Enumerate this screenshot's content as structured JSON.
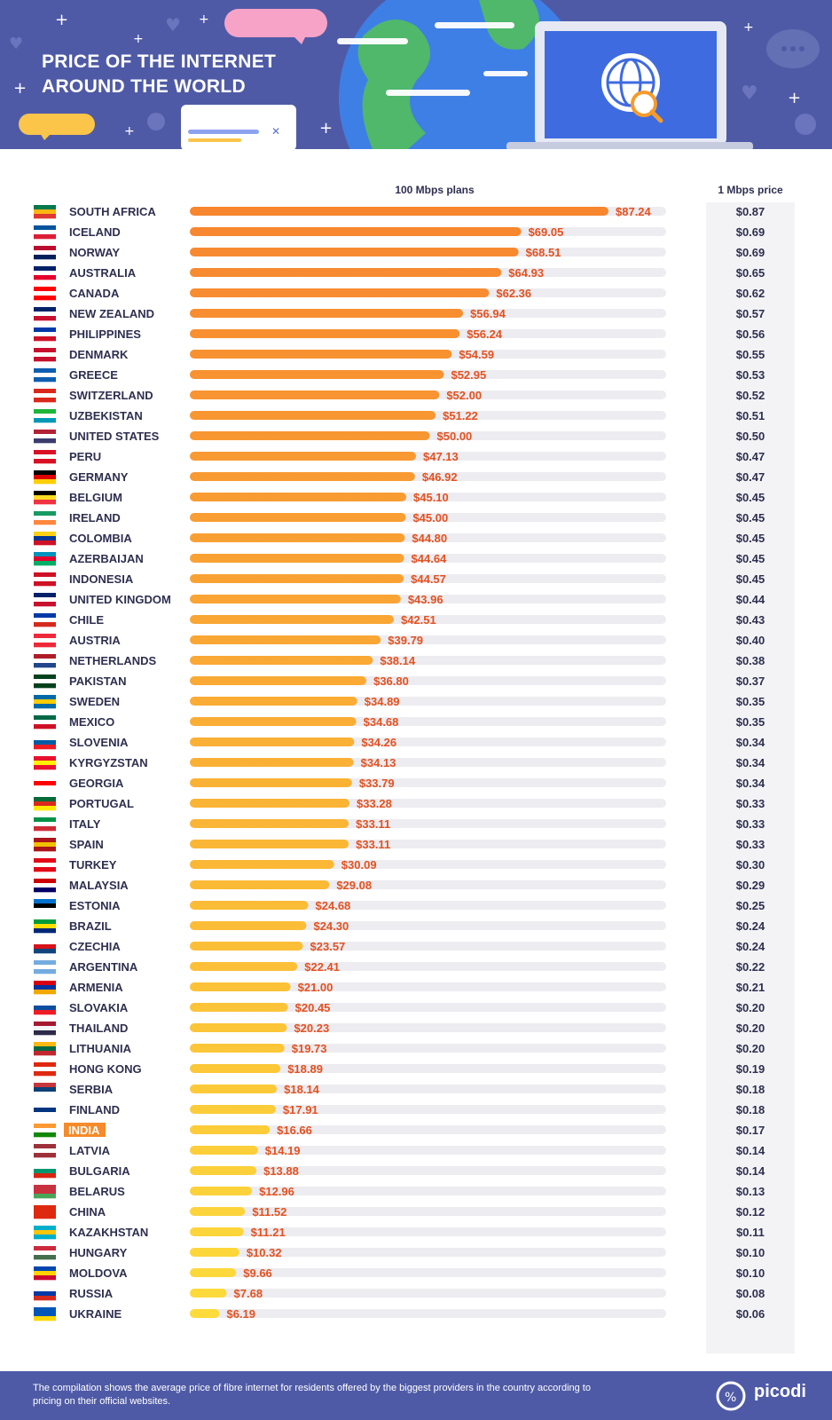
{
  "header": {
    "title_line1": "PRICE OF THE INTERNET",
    "title_line2": "AROUND THE WORLD"
  },
  "colors": {
    "bg_header": "#4f5aa6",
    "bar_track": "#ececf1",
    "bar_start": "#f7862f",
    "bar_end": "#fddb3b",
    "value_text": "#e5511e",
    "label_text": "#2e2f4f",
    "highlight": "#f58b2a"
  },
  "chart_data": {
    "type": "bar",
    "orientation": "horizontal",
    "title": "PRICE OF THE INTERNET AROUND THE WORLD",
    "column_plans_label": "100 Mbps plans",
    "column_mbps_label": "1 Mbps price",
    "xlim": [
      0,
      100
    ],
    "highlight": "INDIA",
    "categories": [
      "SOUTH AFRICA",
      "ICELAND",
      "NORWAY",
      "AUSTRALIA",
      "CANADA",
      "NEW ZEALAND",
      "PHILIPPINES",
      "DENMARK",
      "GREECE",
      "SWITZERLAND",
      "UZBEKISTAN",
      "UNITED STATES",
      "PERU",
      "GERMANY",
      "BELGIUM",
      "IRELAND",
      "COLOMBIA",
      "AZERBAIJAN",
      "INDONESIA",
      "UNITED KINGDOM",
      "CHILE",
      "AUSTRIA",
      "NETHERLANDS",
      "PAKISTAN",
      "SWEDEN",
      "MEXICO",
      "SLOVENIA",
      "KYRGYZSTAN",
      "GEORGIA",
      "PORTUGAL",
      "ITALY",
      "SPAIN",
      "TURKEY",
      "MALAYSIA",
      "ESTONIA",
      "BRAZIL",
      "CZECHIA",
      "ARGENTINA",
      "ARMENIA",
      "SLOVAKIA",
      "THAILAND",
      "LITHUANIA",
      "HONG KONG",
      "SERBIA",
      "FINLAND",
      "INDIA",
      "LATVIA",
      "BULGARIA",
      "BELARUS",
      "CHINA",
      "KAZAKHSTAN",
      "HUNGARY",
      "MOLDOVA",
      "RUSSIA",
      "UKRAINE"
    ],
    "values": [
      87.24,
      69.05,
      68.51,
      64.93,
      62.36,
      56.94,
      56.24,
      54.59,
      52.95,
      52.0,
      51.22,
      50.0,
      47.13,
      46.92,
      45.1,
      45.0,
      44.8,
      44.64,
      44.57,
      43.96,
      42.51,
      39.79,
      38.14,
      36.8,
      34.89,
      34.68,
      34.26,
      34.13,
      33.79,
      33.28,
      33.11,
      33.11,
      30.09,
      29.08,
      24.68,
      24.3,
      23.57,
      22.41,
      21.0,
      20.45,
      20.23,
      19.73,
      18.89,
      18.14,
      17.91,
      16.66,
      14.19,
      13.88,
      12.96,
      11.52,
      11.21,
      10.32,
      9.66,
      7.68,
      6.19
    ],
    "value_labels": [
      "$87.24",
      "$69.05",
      "$68.51",
      "$64.93",
      "$62.36",
      "$56.94",
      "$56.24",
      "$54.59",
      "$52.95",
      "$52.00",
      "$51.22",
      "$50.00",
      "$47.13",
      "$46.92",
      "$45.10",
      "$45.00",
      "$44.80",
      "$44.64",
      "$44.57",
      "$43.96",
      "$42.51",
      "$39.79",
      "$38.14",
      "$36.80",
      "$34.89",
      "$34.68",
      "$34.26",
      "$34.13",
      "$33.79",
      "$33.28",
      "$33.11",
      "$33.11",
      "$30.09",
      "$29.08",
      "$24.68",
      "$24.30",
      "$23.57",
      "$22.41",
      "$21.00",
      "$20.45",
      "$20.23",
      "$19.73",
      "$18.89",
      "$18.14",
      "$17.91",
      "$16.66",
      "$14.19",
      "$13.88",
      "$12.96",
      "$11.52",
      "$11.21",
      "$10.32",
      "$9.66",
      "$7.68",
      "$6.19"
    ],
    "per_mbps": [
      "$0.87",
      "$0.69",
      "$0.69",
      "$0.65",
      "$0.62",
      "$0.57",
      "$0.56",
      "$0.55",
      "$0.53",
      "$0.52",
      "$0.51",
      "$0.50",
      "$0.47",
      "$0.47",
      "$0.45",
      "$0.45",
      "$0.45",
      "$0.45",
      "$0.45",
      "$0.44",
      "$0.43",
      "$0.40",
      "$0.38",
      "$0.37",
      "$0.35",
      "$0.35",
      "$0.34",
      "$0.34",
      "$0.34",
      "$0.33",
      "$0.33",
      "$0.33",
      "$0.30",
      "$0.29",
      "$0.25",
      "$0.24",
      "$0.24",
      "$0.22",
      "$0.21",
      "$0.20",
      "$0.20",
      "$0.20",
      "$0.19",
      "$0.18",
      "$0.18",
      "$0.17",
      "$0.14",
      "$0.14",
      "$0.13",
      "$0.12",
      "$0.11",
      "$0.10",
      "$0.10",
      "$0.08",
      "$0.06"
    ],
    "flag_colors": [
      [
        "#007a4d",
        "#ffb612",
        "#de3831"
      ],
      [
        "#02529c",
        "#ffffff",
        "#dc1e35"
      ],
      [
        "#ba0c2f",
        "#ffffff",
        "#00205b"
      ],
      [
        "#012169",
        "#ffffff",
        "#e4002b"
      ],
      [
        "#ff0000",
        "#ffffff",
        "#ff0000"
      ],
      [
        "#012169",
        "#ffffff",
        "#c8102e"
      ],
      [
        "#0038a8",
        "#ffffff",
        "#ce1126"
      ],
      [
        "#c8102e",
        "#ffffff",
        "#c8102e"
      ],
      [
        "#0d5eaf",
        "#ffffff",
        "#0d5eaf"
      ],
      [
        "#da291c",
        "#ffffff",
        "#da291c"
      ],
      [
        "#1eb53a",
        "#ffffff",
        "#0099b5"
      ],
      [
        "#b22234",
        "#ffffff",
        "#3c3b6e"
      ],
      [
        "#d91023",
        "#ffffff",
        "#d91023"
      ],
      [
        "#000000",
        "#dd0000",
        "#ffce00"
      ],
      [
        "#000000",
        "#fdda24",
        "#ef3340"
      ],
      [
        "#169b62",
        "#ffffff",
        "#ff883e"
      ],
      [
        "#fcd116",
        "#003893",
        "#ce1126"
      ],
      [
        "#0092bc",
        "#e4002b",
        "#00af66"
      ],
      [
        "#ce1126",
        "#ffffff",
        "#ce1126"
      ],
      [
        "#012169",
        "#ffffff",
        "#c8102e"
      ],
      [
        "#0039a6",
        "#ffffff",
        "#d52b1e"
      ],
      [
        "#ed2939",
        "#ffffff",
        "#ed2939"
      ],
      [
        "#ae1c28",
        "#ffffff",
        "#21468b"
      ],
      [
        "#01411c",
        "#ffffff",
        "#01411c"
      ],
      [
        "#006aa7",
        "#fecc00",
        "#006aa7"
      ],
      [
        "#006847",
        "#ffffff",
        "#ce1126"
      ],
      [
        "#ffffff",
        "#005da4",
        "#ed1c24"
      ],
      [
        "#e8112d",
        "#ffef00",
        "#e8112d"
      ],
      [
        "#ffffff",
        "#ff0000",
        "#ffffff"
      ],
      [
        "#046a38",
        "#da291c",
        "#ffe900"
      ],
      [
        "#009246",
        "#ffffff",
        "#ce2b37"
      ],
      [
        "#aa151b",
        "#f1bf00",
        "#aa151b"
      ],
      [
        "#e30a17",
        "#ffffff",
        "#e30a17"
      ],
      [
        "#cc0001",
        "#ffffff",
        "#010066"
      ],
      [
        "#0072ce",
        "#000000",
        "#ffffff"
      ],
      [
        "#009c3b",
        "#ffdf00",
        "#002776"
      ],
      [
        "#ffffff",
        "#d7141a",
        "#11457e"
      ],
      [
        "#74acdf",
        "#ffffff",
        "#74acdf"
      ],
      [
        "#d90012",
        "#0033a0",
        "#f2a800"
      ],
      [
        "#ffffff",
        "#0b4ea2",
        "#ee1c25"
      ],
      [
        "#a51931",
        "#f4f5f8",
        "#2d2a4a"
      ],
      [
        "#fdb913",
        "#006a44",
        "#c1272d"
      ],
      [
        "#de2910",
        "#ffffff",
        "#de2910"
      ],
      [
        "#c6363c",
        "#0c4076",
        "#ffffff"
      ],
      [
        "#ffffff",
        "#003580",
        "#ffffff"
      ],
      [
        "#ff9933",
        "#ffffff",
        "#138808"
      ],
      [
        "#9e3039",
        "#ffffff",
        "#9e3039"
      ],
      [
        "#ffffff",
        "#00966e",
        "#d62612"
      ],
      [
        "#c8313e",
        "#c8313e",
        "#4aa657"
      ],
      [
        "#de2910",
        "#de2910",
        "#de2910"
      ],
      [
        "#00afca",
        "#fec50c",
        "#00afca"
      ],
      [
        "#cd2a3e",
        "#ffffff",
        "#436f4d"
      ],
      [
        "#0046ae",
        "#ffd200",
        "#cc092f"
      ],
      [
        "#ffffff",
        "#0039a6",
        "#d52b1e"
      ],
      [
        "#0057b7",
        "#0057b7",
        "#ffd700"
      ]
    ]
  },
  "footer": {
    "note": "The compilation shows the average price of fibre internet for residents offered by the biggest providers in the country according to pricing on their official websites.",
    "brand": "picodi"
  }
}
